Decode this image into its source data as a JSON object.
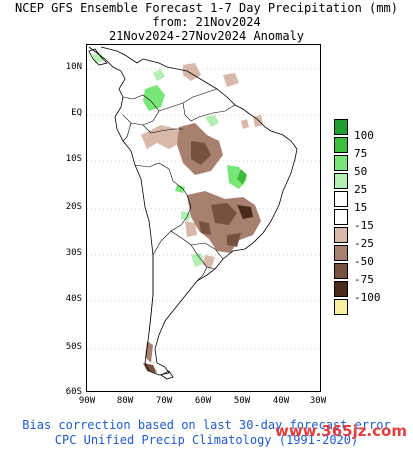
{
  "header": {
    "title_line1": "NCEP GFS Ensemble Forecast 1-7 Day Precipitation (mm)",
    "title_line2": "from: 21Nov2024",
    "title_line3": "21Nov2024-27Nov2024 Anomaly"
  },
  "map": {
    "lat_ticks": [
      "10N",
      "EQ",
      "10S",
      "20S",
      "30S",
      "40S",
      "50S",
      "60S"
    ],
    "lon_ticks": [
      "90W",
      "80W",
      "70W",
      "60W",
      "50W",
      "40W",
      "30W"
    ]
  },
  "legend": {
    "labels": [
      "100",
      "75",
      "50",
      "25",
      "15",
      "-15",
      "-25",
      "-50",
      "-75",
      "-100"
    ],
    "colors": [
      "#1e9e2e",
      "#3cbe3c",
      "#78e678",
      "#b4f0b4",
      "#ffffff",
      "#ffffff",
      "#d8b8a8",
      "#a88070",
      "#785040",
      "#4a2a1a",
      "#f8f0a0"
    ]
  },
  "footer": {
    "line1": "Bias correction based on last 30-day forecast error",
    "line2": "CPC Unified Precip Climatology (1991-2020)"
  },
  "watermark": "www.365jz.com"
}
